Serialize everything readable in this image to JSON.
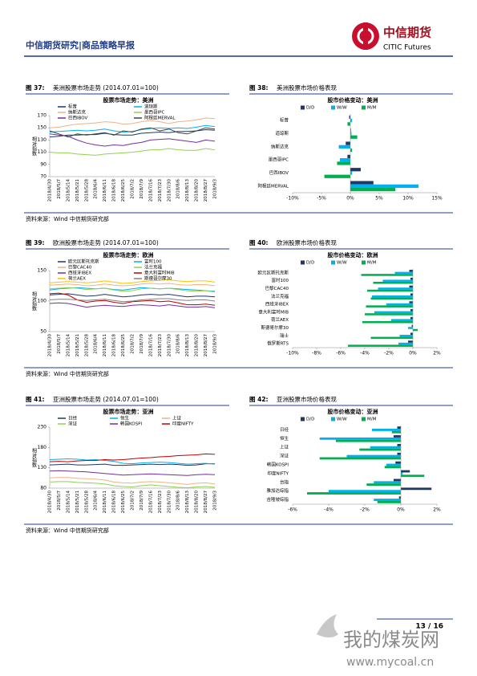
{
  "header": {
    "title": "中信期货研究|商品策略早报",
    "logo_cn": "中信期货",
    "logo_en": "CITIC Futures"
  },
  "chart_data": [
    {
      "type": "line",
      "figure_label": "图 37:",
      "figure_title": "美洲股票市场走势 (2014.07.01=100)",
      "title": "股票市场走势：美洲",
      "y_label": "相对指数",
      "source": "资料来源：Wind 中信期货研究部",
      "categories": [
        "2018/4/30",
        "2018/5/7",
        "2018/5/14",
        "2018/5/21",
        "2018/5/28",
        "2018/6/4",
        "2018/6/11",
        "2018/6/18",
        "2018/6/25",
        "2018/7/2",
        "2018/7/9",
        "2018/7/16",
        "2018/7/23",
        "2018/7/30",
        "2018/8/6",
        "2018/8/13",
        "2018/8/20",
        "2018/8/27",
        "2018/9/3"
      ],
      "ylim": [
        70,
        170
      ],
      "yticks": [
        70,
        90,
        110,
        130,
        150,
        170
      ],
      "series": [
        {
          "name": "标普",
          "color": "#1f3864",
          "values": [
            135,
            136,
            138,
            138,
            139,
            139,
            141,
            139,
            138,
            138,
            141,
            142,
            143,
            142,
            144,
            144,
            145,
            147,
            146
          ]
        },
        {
          "name": "道琼斯",
          "color": "#00b0f0",
          "values": [
            143,
            144,
            145,
            146,
            145,
            146,
            148,
            145,
            143,
            144,
            147,
            149,
            150,
            149,
            150,
            149,
            151,
            154,
            152
          ]
        },
        {
          "name": "纳斯达克",
          "color": "#f4b183",
          "values": [
            150,
            151,
            154,
            156,
            157,
            158,
            160,
            159,
            156,
            157,
            160,
            162,
            160,
            157,
            160,
            161,
            163,
            166,
            165
          ]
        },
        {
          "name": "墨西哥IPC",
          "color": "#92d050",
          "values": [
            110,
            109,
            109,
            107,
            106,
            105,
            107,
            108,
            109,
            110,
            112,
            114,
            114,
            116,
            114,
            113,
            113,
            116,
            114
          ]
        },
        {
          "name": "巴西IBOV",
          "color": "#7030a0",
          "values": [
            140,
            138,
            136,
            130,
            125,
            122,
            120,
            122,
            121,
            124,
            126,
            130,
            131,
            132,
            130,
            128,
            126,
            130,
            128
          ]
        },
        {
          "name": "阿根廷MERVAL",
          "color": "#404040",
          "values": [
            145,
            140,
            135,
            140,
            138,
            140,
            142,
            138,
            145,
            143,
            148,
            150,
            145,
            148,
            142,
            140,
            145,
            150,
            148
          ]
        }
      ]
    },
    {
      "type": "barh",
      "figure_label": "图 38:",
      "figure_title": "美洲股票市场价格表现",
      "title": "股市价格变动：美洲",
      "categories": [
        "标普",
        "道琼斯",
        "纳斯达克",
        "墨西哥IPC",
        "巴西IBOV",
        "阿根廷MERVAL"
      ],
      "xlim": [
        -10,
        15
      ],
      "xticks": [
        {
          "value": -10,
          "label": "-10%"
        },
        {
          "value": -5,
          "label": "-5%"
        },
        {
          "value": 0,
          "label": "0%"
        },
        {
          "value": 5,
          "label": "5%"
        },
        {
          "value": 10,
          "label": "10%"
        },
        {
          "value": 15,
          "label": "15%"
        }
      ],
      "series": [
        {
          "name": "D/D",
          "color": "#1f3864",
          "values": [
            -0.2,
            0.1,
            -0.8,
            -0.5,
            1.8,
            4.0
          ]
        },
        {
          "name": "W/W",
          "color": "#00b0f0",
          "values": [
            0.3,
            0.2,
            -2.0,
            -1.8,
            0.3,
            11.8
          ]
        },
        {
          "name": "M/M",
          "color": "#00b050",
          "values": [
            -0.5,
            1.2,
            0.3,
            -2.3,
            -4.5,
            7.8
          ]
        }
      ]
    },
    {
      "type": "line",
      "figure_label": "图 39:",
      "figure_title": "欧洲股票市场走势 (2014.07.01=100)",
      "title": "股票市场走势：欧洲",
      "y_label": "相对指数",
      "source": "资料来源：Wind 中信期货研究部",
      "categories": [
        "2018/4/30",
        "2018/5/7",
        "2018/5/14",
        "2018/5/21",
        "2018/5/28",
        "2018/6/4",
        "2018/6/11",
        "2018/6/18",
        "2018/6/25",
        "2018/7/2",
        "2018/7/9",
        "2018/7/16",
        "2018/7/23",
        "2018/7/30",
        "2018/8/6",
        "2018/8/13",
        "2018/8/20",
        "2018/8/27",
        "2018/9/3"
      ],
      "ylim": [
        50,
        150
      ],
      "yticks": [
        50,
        100,
        150
      ],
      "series": [
        {
          "name": "欧元区斯托克斯",
          "color": "#1f3864",
          "values": [
            110,
            111,
            112,
            110,
            108,
            109,
            111,
            109,
            107,
            108,
            110,
            111,
            110,
            111,
            109,
            107,
            108,
            108,
            107
          ]
        },
        {
          "name": "富时100",
          "color": "#00b0f0",
          "values": [
            118,
            120,
            121,
            122,
            121,
            120,
            121,
            119,
            118,
            120,
            122,
            121,
            120,
            121,
            120,
            119,
            118,
            117,
            116
          ]
        },
        {
          "name": "巴黎CAC40",
          "color": "#f4b183",
          "values": [
            126,
            127,
            128,
            127,
            125,
            126,
            128,
            126,
            125,
            126,
            128,
            129,
            128,
            129,
            127,
            126,
            127,
            127,
            125
          ]
        },
        {
          "name": "法兰克福",
          "color": "#92d050",
          "values": [
            120,
            121,
            122,
            121,
            119,
            120,
            121,
            118,
            116,
            117,
            120,
            121,
            120,
            121,
            119,
            117,
            116,
            117,
            115
          ]
        },
        {
          "name": "西班牙IBEX",
          "color": "#7030a0",
          "values": [
            96,
            97,
            96,
            93,
            90,
            92,
            93,
            92,
            91,
            93,
            94,
            93,
            92,
            94,
            92,
            90,
            90,
            91,
            89
          ]
        },
        {
          "name": "意大利富时MIB",
          "color": "#c00000",
          "values": [
            112,
            113,
            110,
            102,
            98,
            100,
            101,
            98,
            96,
            99,
            100,
            101,
            99,
            100,
            97,
            94,
            94,
            95,
            93
          ]
        },
        {
          "name": "荷兰AEX",
          "color": "#ffc000",
          "values": [
            130,
            131,
            132,
            131,
            130,
            131,
            133,
            131,
            129,
            130,
            132,
            133,
            134,
            135,
            133,
            132,
            133,
            133,
            131
          ]
        },
        {
          "name": "斯德哥尔摩30",
          "color": "#808080",
          "values": [
            102,
            103,
            103,
            102,
            101,
            102,
            103,
            101,
            99,
            100,
            102,
            103,
            104,
            104,
            102,
            101,
            102,
            102,
            100
          ]
        }
      ]
    },
    {
      "type": "barh",
      "figure_label": "图 40:",
      "figure_title": "欧洲股票市场价格表现",
      "title": "股市价格变动：欧洲",
      "categories": [
        "欧元区斯托克斯",
        "富时100",
        "巴黎CAC40",
        "法兰克福",
        "西班牙IBEX",
        "意大利富时MIB",
        "荷兰AEX",
        "斯德哥尔摩30",
        "瑞士",
        "俄罗斯RTS"
      ],
      "xlim": [
        -10,
        2
      ],
      "xticks": [
        {
          "value": -10,
          "label": "-10%"
        },
        {
          "value": -8,
          "label": "-8%"
        },
        {
          "value": -6,
          "label": "-6%"
        },
        {
          "value": -4,
          "label": "-4%"
        },
        {
          "value": -2,
          "label": "-2%"
        },
        {
          "value": 0,
          "label": "0%"
        },
        {
          "value": 2,
          "label": "2%"
        }
      ],
      "series": [
        {
          "name": "D/D",
          "color": "#1f3864",
          "values": [
            -0.3,
            -0.2,
            -0.3,
            -0.2,
            -0.3,
            -0.2,
            -0.2,
            -0.1,
            -0.2,
            -0.4
          ]
        },
        {
          "name": "W/W",
          "color": "#00b0f0",
          "values": [
            -1.5,
            -2.5,
            -2.9,
            -3.4,
            -2.2,
            -3.2,
            -1.8,
            -0.4,
            -1.1,
            -1.2
          ]
        },
        {
          "name": "M/M",
          "color": "#00b050",
          "values": [
            -4.3,
            -3.3,
            -3.8,
            -3.5,
            -3.9,
            -4.0,
            -4.2,
            0.4,
            -3.5,
            -5.4
          ]
        }
      ]
    },
    {
      "type": "line",
      "figure_label": "图 41:",
      "figure_title": "亚洲股票市场走势 (2014.07.01=100)",
      "title": "股票市场走势：亚洲",
      "y_label": "相对指数",
      "source": "资料来源：Wind 中信期货研究部",
      "categories": [
        "2018/4/30",
        "2018/5/7",
        "2018/5/14",
        "2018/5/21",
        "2018/5/28",
        "2018/6/4",
        "2018/6/11",
        "2018/6/18",
        "2018/6/25",
        "2018/7/2",
        "2018/7/9",
        "2018/7/16",
        "2018/7/23",
        "2018/7/30",
        "2018/8/6",
        "2018/8/13",
        "2018/8/20",
        "2018/8/27",
        "2018/9/3"
      ],
      "ylim": [
        80,
        230
      ],
      "yticks": [
        80,
        130,
        180,
        230
      ],
      "series": [
        {
          "name": "日经",
          "color": "#1f3864",
          "values": [
            137,
            138,
            139,
            137,
            137,
            138,
            139,
            136,
            136,
            137,
            138,
            139,
            138,
            139,
            138,
            136,
            137,
            140,
            140
          ]
        },
        {
          "name": "恒生",
          "color": "#00b0f0",
          "values": [
            150,
            151,
            152,
            151,
            149,
            150,
            148,
            146,
            141,
            140,
            142,
            143,
            144,
            143,
            141,
            139,
            140,
            141,
            139
          ]
        },
        {
          "name": "上证",
          "color": "#f4b183",
          "values": [
            105,
            106,
            106,
            104,
            103,
            102,
            100,
            95,
            93,
            92,
            95,
            96,
            95,
            93,
            91,
            89,
            92,
            93,
            90
          ]
        },
        {
          "name": "深证",
          "color": "#92d050",
          "values": [
            95,
            96,
            96,
            94,
            93,
            92,
            90,
            86,
            84,
            83,
            86,
            88,
            86,
            84,
            82,
            81,
            83,
            84,
            82
          ]
        },
        {
          "name": "韩国KOSPI",
          "color": "#7030a0",
          "values": [
            122,
            123,
            122,
            121,
            120,
            118,
            116,
            114,
            112,
            113,
            114,
            115,
            114,
            113,
            112,
            111,
            113,
            114,
            113
          ]
        },
        {
          "name": "印度NIFTY",
          "color": "#c00000",
          "values": [
            145,
            146,
            145,
            147,
            148,
            148,
            150,
            149,
            150,
            152,
            154,
            155,
            157,
            158,
            160,
            161,
            162,
            164,
            163
          ]
        }
      ]
    },
    {
      "type": "barh",
      "figure_label": "图 42:",
      "figure_title": "亚洲股票市场价格表现",
      "title": "股市价格变动：亚洲",
      "categories": [
        "日经",
        "恒生",
        "上证",
        "深证",
        "韩国KOSPI",
        "印度NIFTY",
        "台指",
        "雅加达综指",
        "吉隆坡综指"
      ],
      "xlim": [
        -6,
        2
      ],
      "xticks": [
        {
          "value": -6,
          "label": "-6%"
        },
        {
          "value": -4,
          "label": "-4%"
        },
        {
          "value": -2,
          "label": "-2%"
        },
        {
          "value": 0,
          "label": "0%"
        },
        {
          "value": 2,
          "label": "2%"
        }
      ],
      "series": [
        {
          "name": "D/D",
          "color": "#1f3864",
          "values": [
            -0.2,
            -0.4,
            -0.2,
            -0.2,
            -0.3,
            0.5,
            -0.4,
            1.7,
            -0.1
          ]
        },
        {
          "name": "W/W",
          "color": "#00b0f0",
          "values": [
            -1.6,
            -4.5,
            -1.7,
            -3.0,
            -0.8,
            0.1,
            -1.5,
            -4.0,
            -1.5
          ]
        },
        {
          "name": "M/M",
          "color": "#00b050",
          "values": [
            -0.5,
            -3.6,
            -2.3,
            -4.5,
            -0.9,
            1.3,
            -1.9,
            -5.2,
            -1.3
          ]
        }
      ]
    }
  ],
  "footer": {
    "page": "13 / 16",
    "watermark": "我的煤炭网",
    "watermark_url": "www.mycoal.cn"
  }
}
